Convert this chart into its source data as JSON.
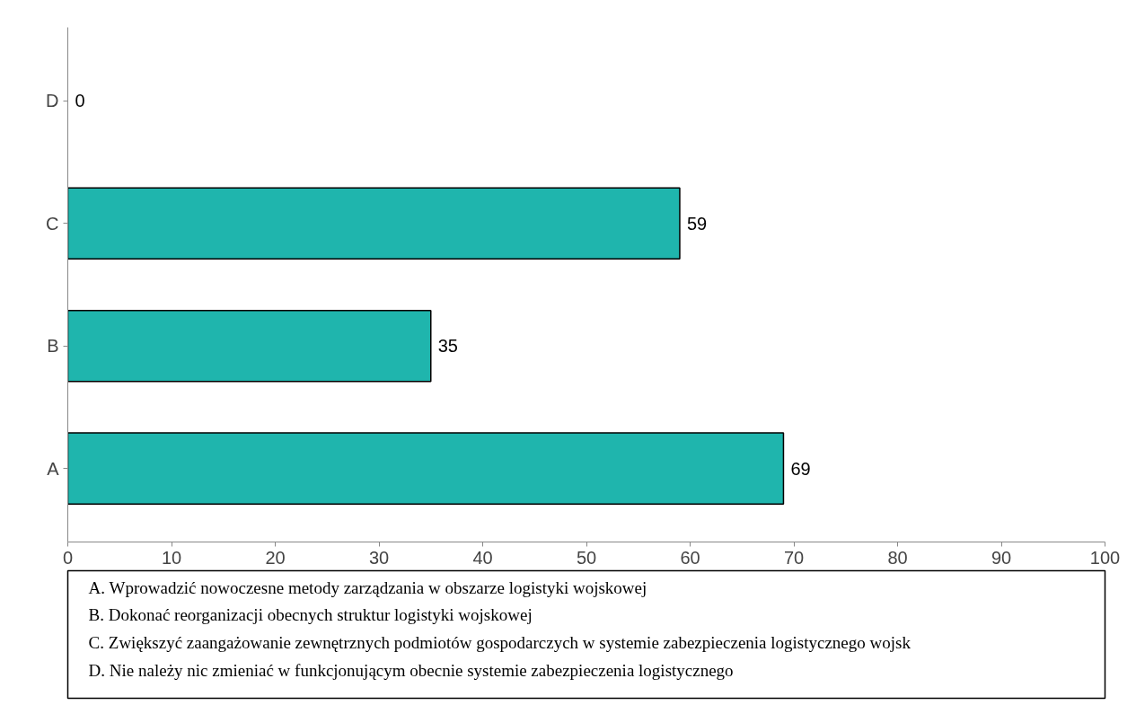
{
  "chart_data": {
    "type": "bar",
    "orientation": "horizontal",
    "categories": [
      "D",
      "C",
      "B",
      "A"
    ],
    "values": [
      0,
      59,
      35,
      69
    ],
    "color": "#1fb5ad",
    "data_labels": true,
    "xlim": [
      0,
      100
    ],
    "xticks": [
      0,
      10,
      20,
      30,
      40,
      50,
      60,
      70,
      80,
      90,
      100
    ],
    "grid": false,
    "annotations": [
      "A. Wprowadzić nowoczesne metody zarządzania w obszarze logistyki wojskowej",
      "B. Dokonać reorganizacji obecnych struktur logistyki wojskowej",
      "C. Zwiększyć zaangażowanie zewnętrznych podmiotów gospodarczych w systemie zabezpieczenia logistycznego wojsk",
      "D. Nie należy nic zmieniać w funkcjonującym obecnie systemie zabezpieczenia logistycznego"
    ]
  }
}
